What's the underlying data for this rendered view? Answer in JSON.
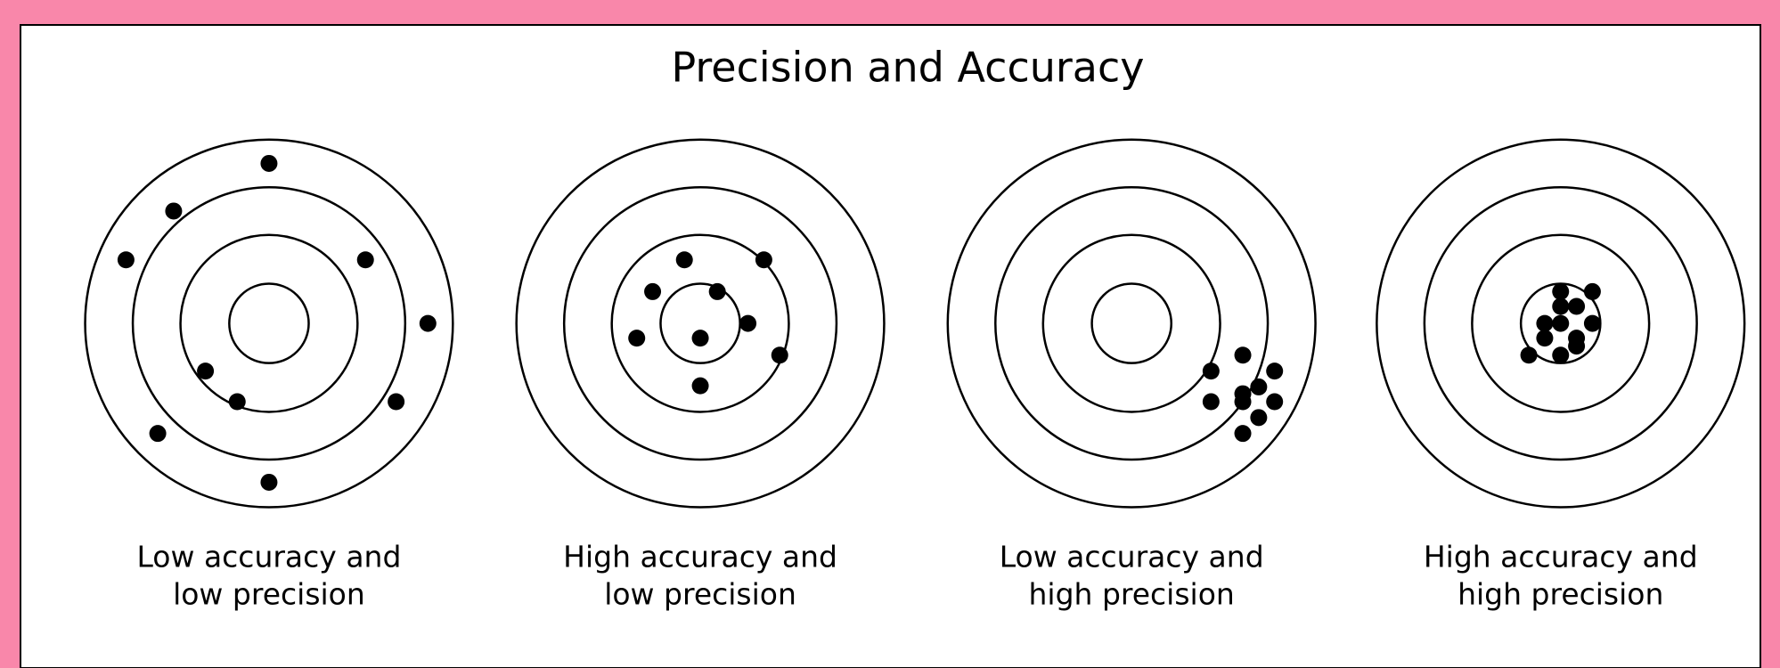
{
  "title": "Precision and Accuracy",
  "targets": [
    {
      "caption": [
        "Low accuracy and",
        "low precision"
      ]
    },
    {
      "caption": [
        "High accuracy and",
        "low precision"
      ]
    },
    {
      "caption": [
        "Low accuracy and",
        "high precision"
      ]
    },
    {
      "caption": [
        "High accuracy and",
        "high precision"
      ]
    }
  ]
}
